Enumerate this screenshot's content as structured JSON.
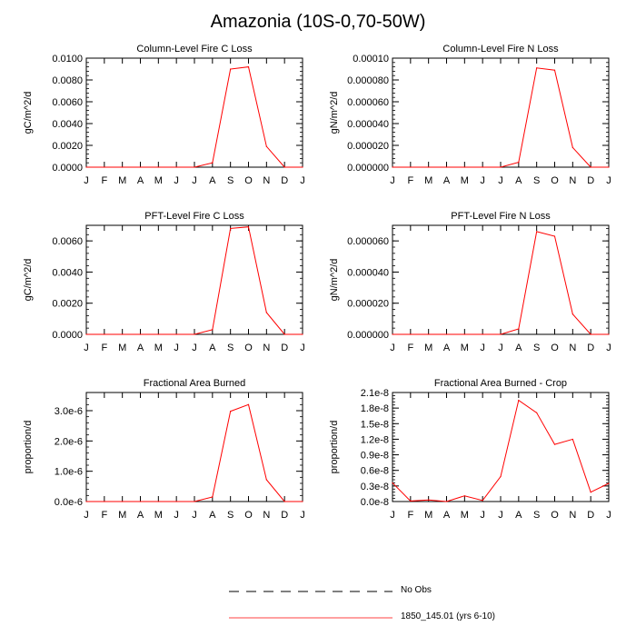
{
  "title": "Amazonia (10S-0,70-50W)",
  "months": [
    "J",
    "F",
    "M",
    "A",
    "M",
    "J",
    "J",
    "A",
    "S",
    "O",
    "N",
    "D",
    "J"
  ],
  "colors": {
    "model_line": "#ff0000",
    "obs_line": "#000000",
    "axis": "#000000"
  },
  "legend": {
    "obs_label": "No Obs",
    "model_label": "1850_145.01 (yrs 6-10)"
  },
  "chart_data": [
    {
      "type": "line",
      "title": "Column-Level Fire C Loss",
      "ylabel": "gC/m^2/d",
      "ylim": [
        0,
        0.01
      ],
      "yticks": [
        0,
        0.002,
        0.004,
        0.006,
        0.008,
        0.01
      ],
      "ytick_labels": [
        "0.0000",
        "0.0020",
        "0.0040",
        "0.0060",
        "0.0080",
        "0.0100"
      ],
      "categories": [
        "J",
        "F",
        "M",
        "A",
        "M",
        "J",
        "J",
        "A",
        "S",
        "O",
        "N",
        "D",
        "J"
      ],
      "series": [
        {
          "name": "1850_145.01 (yrs 6-10)",
          "values": [
            0,
            0,
            0,
            0,
            0,
            0,
            0.0,
            0.0004,
            0.009,
            0.0092,
            0.0019,
            0.0,
            0.0
          ]
        }
      ]
    },
    {
      "type": "line",
      "title": "Column-Level Fire N Loss",
      "ylabel": "gN/m^2/d",
      "ylim": [
        0,
        0.0001
      ],
      "yticks": [
        0,
        2e-05,
        4e-05,
        6e-05,
        8e-05,
        0.0001
      ],
      "ytick_labels": [
        "0.000000",
        "0.000020",
        "0.000040",
        "0.000060",
        "0.000080",
        "0.00010"
      ],
      "categories": [
        "J",
        "F",
        "M",
        "A",
        "M",
        "J",
        "J",
        "A",
        "S",
        "O",
        "N",
        "D",
        "J"
      ],
      "series": [
        {
          "name": "1850_145.01 (yrs 6-10)",
          "values": [
            0,
            0,
            0,
            0,
            0,
            0,
            0.0,
            4.5e-06,
            9.1e-05,
            8.9e-05,
            1.8e-05,
            0,
            0
          ]
        }
      ]
    },
    {
      "type": "line",
      "title": "PFT-Level Fire C Loss",
      "ylabel": "gC/m^2/d",
      "ylim": [
        0,
        0.007
      ],
      "yticks": [
        0,
        0.002,
        0.004,
        0.006
      ],
      "ytick_labels": [
        "0.0000",
        "0.0020",
        "0.0040",
        "0.0060"
      ],
      "categories": [
        "J",
        "F",
        "M",
        "A",
        "M",
        "J",
        "J",
        "A",
        "S",
        "O",
        "N",
        "D",
        "J"
      ],
      "series": [
        {
          "name": "1850_145.01 (yrs 6-10)",
          "values": [
            0,
            0,
            0,
            0,
            0,
            0,
            0.0,
            0.0003,
            0.0068,
            0.0069,
            0.0014,
            0,
            0
          ]
        }
      ]
    },
    {
      "type": "line",
      "title": "PFT-Level Fire N Loss",
      "ylabel": "gN/m^2/d",
      "ylim": [
        0,
        7e-05
      ],
      "yticks": [
        0,
        2e-05,
        4e-05,
        6e-05
      ],
      "ytick_labels": [
        "0.000000",
        "0.000020",
        "0.000040",
        "0.000060"
      ],
      "categories": [
        "J",
        "F",
        "M",
        "A",
        "M",
        "J",
        "J",
        "A",
        "S",
        "O",
        "N",
        "D",
        "J"
      ],
      "series": [
        {
          "name": "1850_145.01 (yrs 6-10)",
          "values": [
            0,
            0,
            0,
            0,
            0,
            0,
            0.0,
            3.5e-06,
            6.6e-05,
            6.3e-05,
            1.3e-05,
            0,
            0
          ]
        }
      ]
    },
    {
      "type": "line",
      "title": "Fractional Area Burned",
      "ylabel": "proportion/d",
      "ylim": [
        0,
        3.6e-06
      ],
      "yticks": [
        0,
        1e-06,
        2e-06,
        3e-06
      ],
      "ytick_labels": [
        "0.0e-6",
        "1.0e-6",
        "2.0e-6",
        "3.0e-6"
      ],
      "categories": [
        "J",
        "F",
        "M",
        "A",
        "M",
        "J",
        "J",
        "A",
        "S",
        "O",
        "N",
        "D",
        "J"
      ],
      "series": [
        {
          "name": "1850_145.01 (yrs 6-10)",
          "values": [
            0,
            0,
            0,
            0,
            0,
            0,
            0.0,
            1.5e-07,
            2.98e-06,
            3.2e-06,
            7.2e-07,
            0,
            0
          ]
        }
      ]
    },
    {
      "type": "line",
      "title": "Fractional Area Burned - Crop",
      "ylabel": "proportion/d",
      "ylim": [
        0,
        2.1e-08
      ],
      "yticks": [
        0,
        3e-09,
        6e-09,
        9e-09,
        1.2e-08,
        1.5e-08,
        1.8e-08,
        2.1e-08
      ],
      "ytick_labels": [
        "0.0e-8",
        "0.3e-8",
        "0.6e-8",
        "0.9e-8",
        "1.2e-8",
        "1.5e-8",
        "1.8e-8",
        "2.1e-8"
      ],
      "categories": [
        "J",
        "F",
        "M",
        "A",
        "M",
        "J",
        "J",
        "A",
        "S",
        "O",
        "N",
        "D",
        "J"
      ],
      "series": [
        {
          "name": "1850_145.01 (yrs 6-10)",
          "values": [
            3.6e-09,
            1e-10,
            3e-10,
            0.0,
            1.1e-09,
            2e-10,
            4.8e-09,
            1.95e-08,
            1.71e-08,
            1.1e-08,
            1.2e-08,
            1.8e-09,
            3.5e-09
          ]
        }
      ]
    }
  ]
}
